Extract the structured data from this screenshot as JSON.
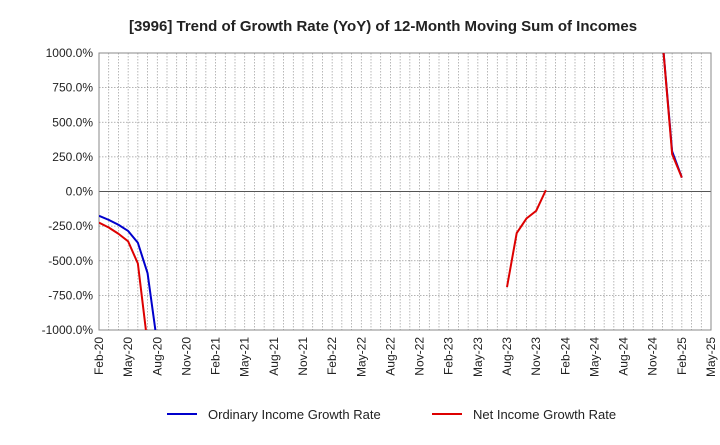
{
  "chart_data": {
    "type": "line",
    "title": "[3996]  Trend of Growth Rate (YoY) of 12-Month Moving Sum of Incomes",
    "xlabel": "",
    "ylabel": "",
    "ylim": [
      -1000,
      1000
    ],
    "yticks": [
      1000,
      750,
      500,
      250,
      0,
      -250,
      -500,
      -750,
      -1000
    ],
    "ytick_labels": [
      "1000.0%",
      "750.0%",
      "500.0%",
      "250.0%",
      "0.0%",
      "-250.0%",
      "-500.0%",
      "-750.0%",
      "-1000.0%"
    ],
    "x_tick_labels": [
      "Feb-20",
      "May-20",
      "Aug-20",
      "Nov-20",
      "Feb-21",
      "May-21",
      "Aug-21",
      "Nov-21",
      "Feb-22",
      "May-22",
      "Aug-22",
      "Nov-22",
      "Feb-23",
      "May-23",
      "Aug-23",
      "Nov-23",
      "Feb-24",
      "May-24",
      "Aug-24",
      "Nov-24",
      "Feb-25",
      "May-25"
    ],
    "x_months": [
      "2020-02",
      "2020-03",
      "2020-04",
      "2020-05",
      "2020-06",
      "2020-07",
      "2020-08",
      "2020-09",
      "2020-10",
      "2020-11",
      "2020-12",
      "2021-01",
      "2021-02",
      "2021-03",
      "2021-04",
      "2021-05",
      "2021-06",
      "2021-07",
      "2021-08",
      "2021-09",
      "2021-10",
      "2021-11",
      "2021-12",
      "2022-01",
      "2022-02",
      "2022-03",
      "2022-04",
      "2022-05",
      "2022-06",
      "2022-07",
      "2022-08",
      "2022-09",
      "2022-10",
      "2022-11",
      "2022-12",
      "2023-01",
      "2023-02",
      "2023-03",
      "2023-04",
      "2023-05",
      "2023-06",
      "2023-07",
      "2023-08",
      "2023-09",
      "2023-10",
      "2023-11",
      "2023-12",
      "2024-01",
      "2024-02",
      "2024-03",
      "2024-04",
      "2024-05",
      "2024-06",
      "2024-07",
      "2024-08",
      "2024-09",
      "2024-10",
      "2024-11",
      "2024-12",
      "2025-01",
      "2025-02",
      "2025-03",
      "2025-04",
      "2025-05"
    ],
    "grid": true,
    "legend_position": "bottom",
    "series": [
      {
        "name": "Ordinary Income Growth Rate",
        "color": "#0000cc",
        "points": [
          [
            "2020-02",
            -175
          ],
          [
            "2020-03",
            -205
          ],
          [
            "2020-04",
            -240
          ],
          [
            "2020-05",
            -285
          ],
          [
            "2020-06",
            -370
          ],
          [
            "2020-07",
            -590
          ],
          [
            "2020-08",
            -1100
          ],
          null,
          [
            "2024-12",
            1100
          ],
          [
            "2025-01",
            290
          ],
          [
            "2025-02",
            100
          ]
        ]
      },
      {
        "name": "Net Income Growth Rate",
        "color": "#dd0000",
        "points": [
          [
            "2020-02",
            -225
          ],
          [
            "2020-03",
            -260
          ],
          [
            "2020-04",
            -305
          ],
          [
            "2020-05",
            -360
          ],
          [
            "2020-06",
            -520
          ],
          [
            "2020-07",
            -1100
          ],
          null,
          [
            "2023-08",
            -690
          ],
          [
            "2023-09",
            -300
          ],
          [
            "2023-10",
            -195
          ],
          [
            "2023-11",
            -140
          ],
          [
            "2023-12",
            10
          ],
          null,
          [
            "2024-12",
            1100
          ],
          [
            "2025-01",
            270
          ],
          [
            "2025-02",
            100
          ]
        ]
      }
    ]
  }
}
